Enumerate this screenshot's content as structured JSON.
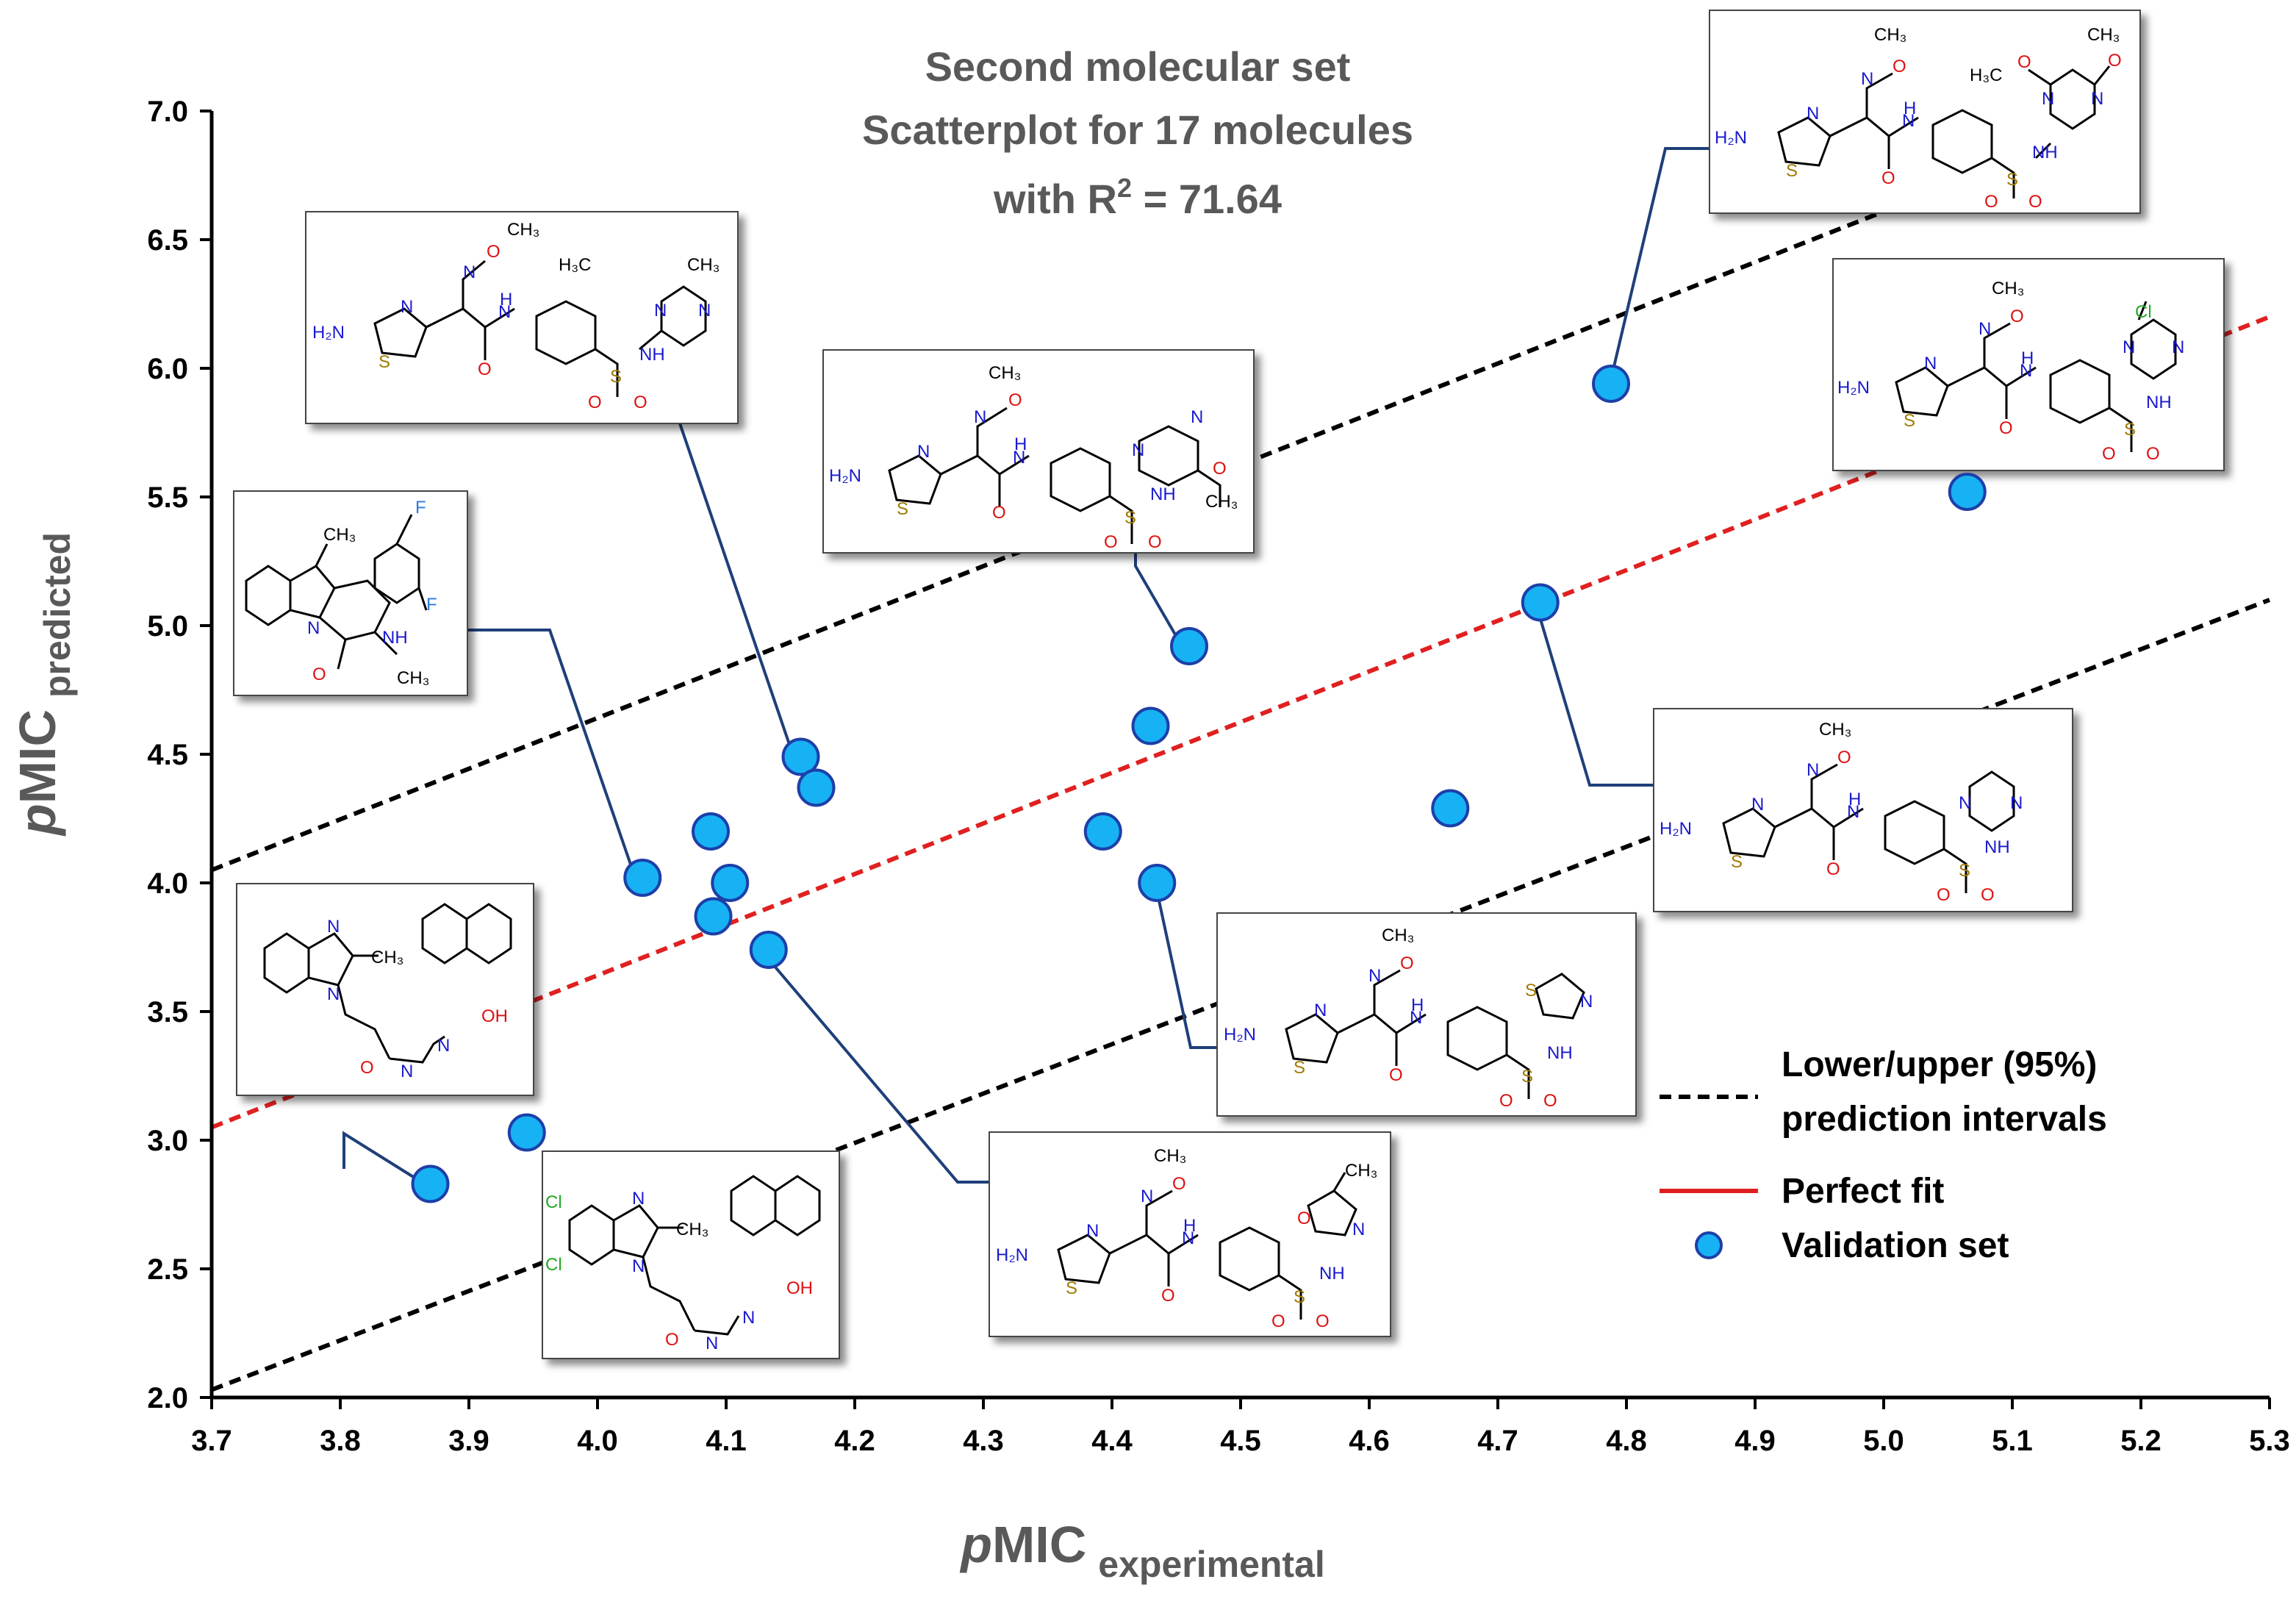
{
  "chart_data": {
    "type": "scatter",
    "title_lines": [
      "Second molecular set",
      "Scatterplot for 17 molecules",
      "with R",
      "2",
      " = 71.64"
    ],
    "xlabel": {
      "main": "p",
      "mid": "MIC",
      "sub": "experimental"
    },
    "ylabel": {
      "main": "p",
      "mid": "MIC",
      "sub": "predicted"
    },
    "xlim": [
      3.7,
      5.3
    ],
    "ylim": [
      2.0,
      7.0
    ],
    "x_ticks": [
      "3.7",
      "3.8",
      "3.9",
      "4.0",
      "4.1",
      "4.2",
      "4.3",
      "4.4",
      "4.5",
      "4.6",
      "4.7",
      "4.8",
      "4.9",
      "5.0",
      "5.1",
      "5.2",
      "5.3"
    ],
    "y_ticks": [
      "2.0",
      "2.5",
      "3.0",
      "3.5",
      "4.0",
      "4.5",
      "5.0",
      "5.5",
      "6.0",
      "6.5",
      "7.0"
    ],
    "lines": {
      "perfect_fit": {
        "from": [
          3.7,
          3.05
        ],
        "to": [
          5.3,
          6.2
        ]
      },
      "upper_pi": {
        "from": [
          3.7,
          4.05
        ],
        "to": [
          5.3,
          7.2
        ]
      },
      "lower_pi": {
        "from": [
          3.7,
          2.03
        ],
        "to": [
          5.3,
          5.1
        ]
      }
    },
    "points": [
      {
        "x": 3.87,
        "y": 2.83
      },
      {
        "x": 3.945,
        "y": 3.03
      },
      {
        "x": 4.035,
        "y": 4.02
      },
      {
        "x": 4.088,
        "y": 4.2
      },
      {
        "x": 4.09,
        "y": 3.87
      },
      {
        "x": 4.103,
        "y": 4.0
      },
      {
        "x": 4.133,
        "y": 3.74
      },
      {
        "x": 4.158,
        "y": 4.49
      },
      {
        "x": 4.17,
        "y": 4.37
      },
      {
        "x": 4.393,
        "y": 4.2
      },
      {
        "x": 4.43,
        "y": 4.61
      },
      {
        "x": 4.435,
        "y": 4.0
      },
      {
        "x": 4.46,
        "y": 4.92
      },
      {
        "x": 4.663,
        "y": 4.29
      },
      {
        "x": 4.733,
        "y": 5.09
      },
      {
        "x": 4.788,
        "y": 5.94
      },
      {
        "x": 5.065,
        "y": 5.52
      }
    ],
    "legend": {
      "pi_line1": "Lower/upper (95%)",
      "pi_line2": "prediction intervals",
      "fit": "Perfect fit",
      "validation": "Validation set"
    },
    "colors": {
      "point_fill": "#16b2f4",
      "point_stroke": "#1d3fa8",
      "fit": "#e02020",
      "pi": "#000000",
      "leader": "#1f3f7a",
      "title": "#595959"
    }
  }
}
